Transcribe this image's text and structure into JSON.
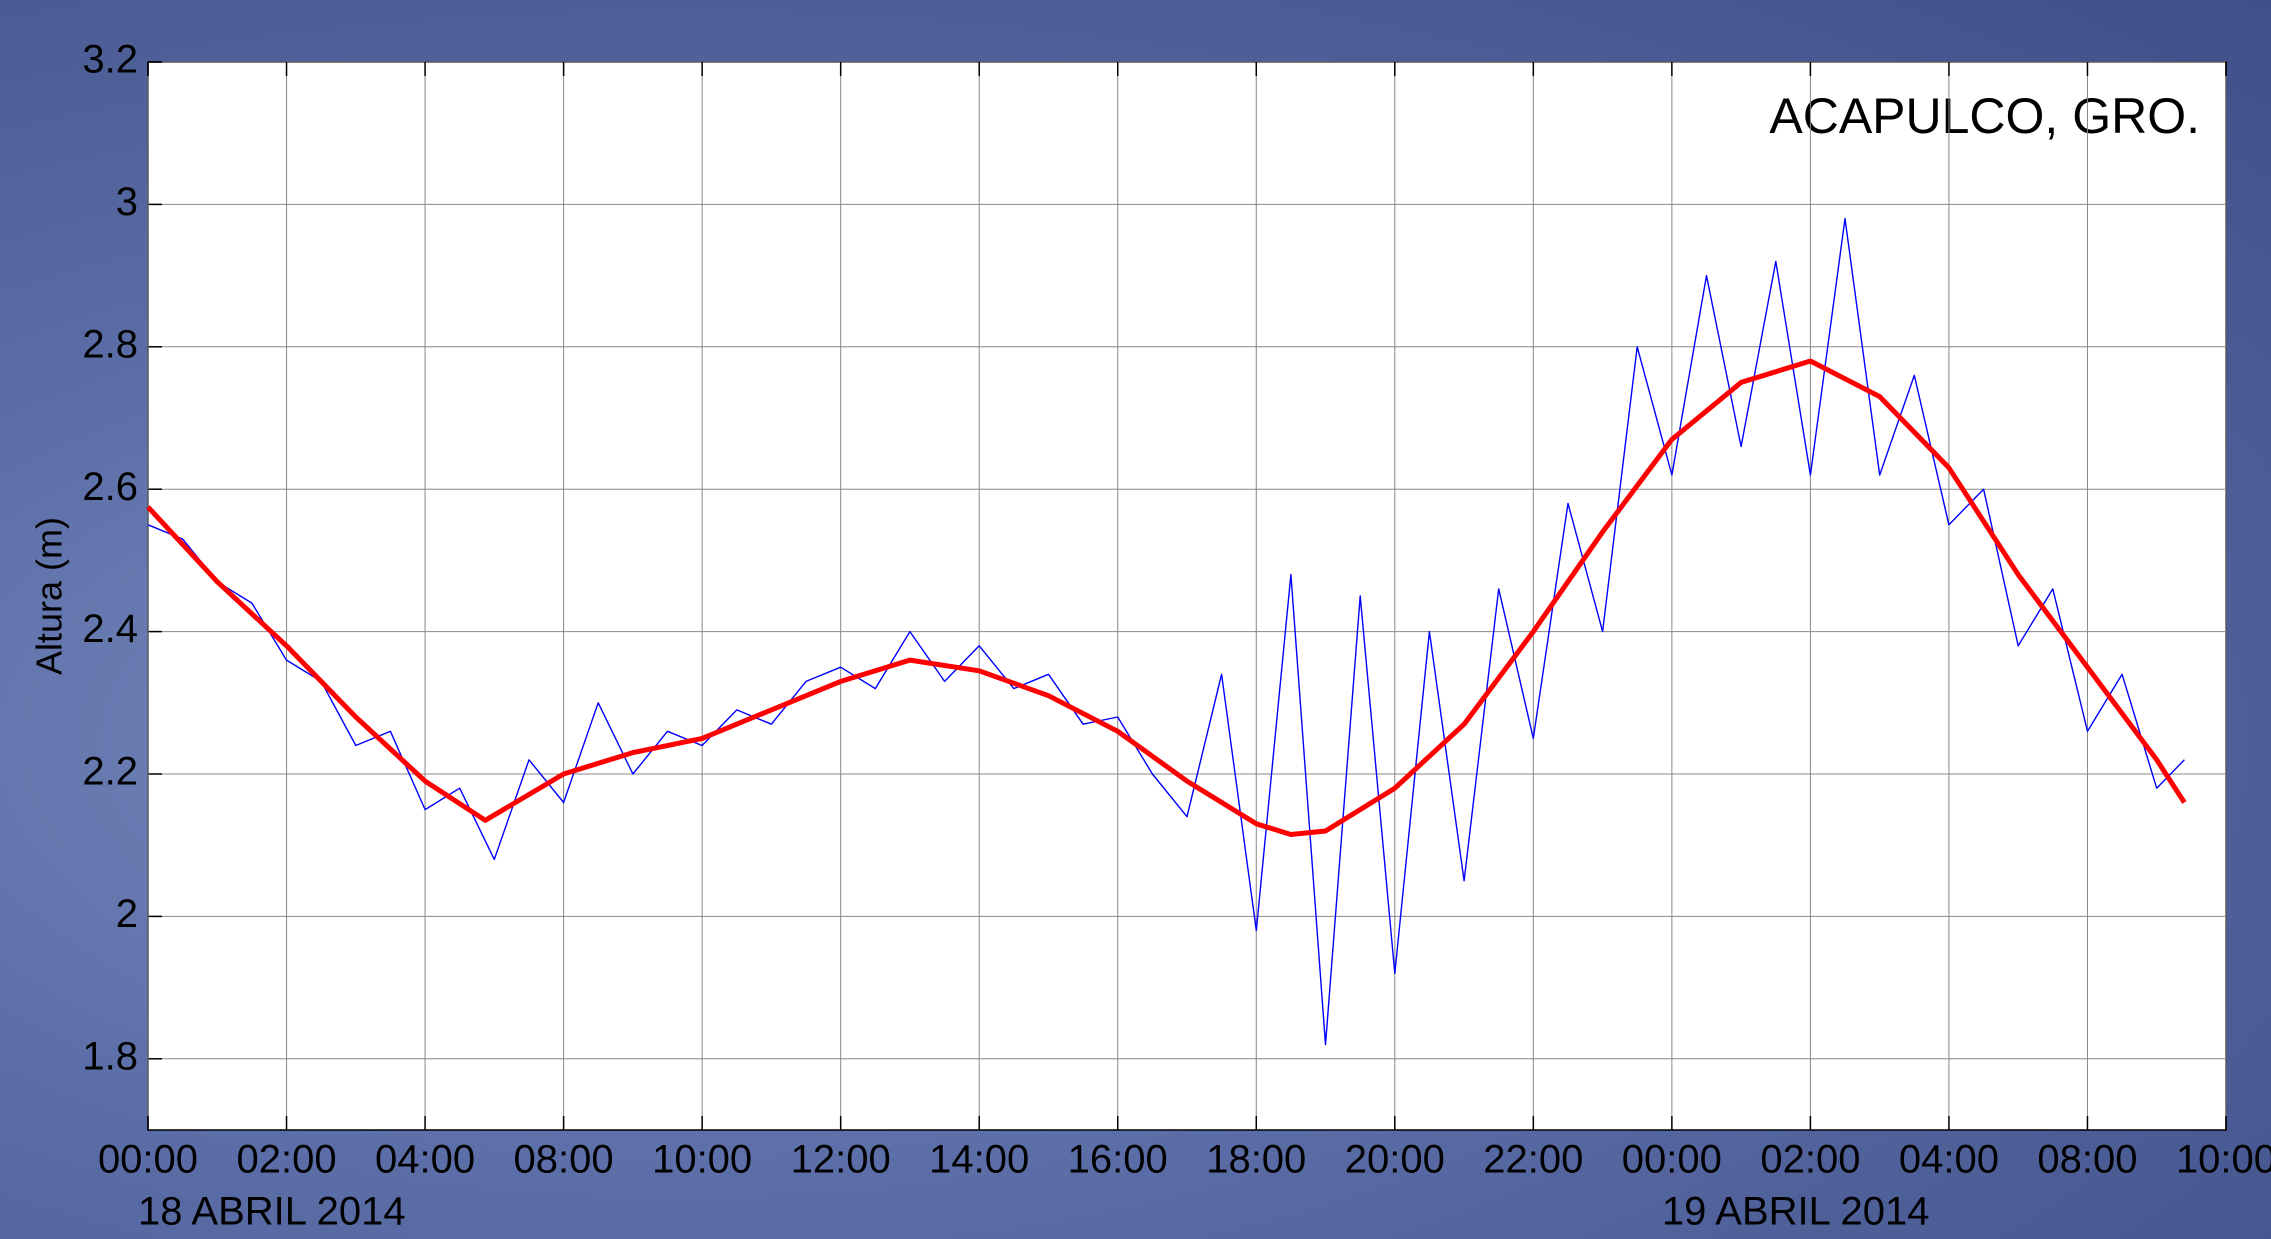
{
  "chart_data": {
    "type": "line",
    "annotation": "ACAPULCO, GRO.",
    "y_label": "Altura (m)",
    "date_labels": [
      "18 ABRIL 2014",
      "19 ABRIL 2014"
    ],
    "xlim": [
      0,
      30
    ],
    "xticks": [
      {
        "value": 0,
        "label": "00:00"
      },
      {
        "value": 2,
        "label": "02:00"
      },
      {
        "value": 4,
        "label": "04:00"
      },
      {
        "value": 6,
        "label": "08:00"
      },
      {
        "value": 8,
        "label": "10:00"
      },
      {
        "value": 10,
        "label": "12:00"
      },
      {
        "value": 12,
        "label": "14:00"
      },
      {
        "value": 14,
        "label": "16:00"
      },
      {
        "value": 16,
        "label": "18:00"
      },
      {
        "value": 18,
        "label": "20:00"
      },
      {
        "value": 20,
        "label": "22:00"
      },
      {
        "value": 22,
        "label": "00:00"
      },
      {
        "value": 24,
        "label": "02:00"
      },
      {
        "value": 26,
        "label": "04:00"
      },
      {
        "value": 28,
        "label": "08:00"
      },
      {
        "value": 30,
        "label": "10:00"
      }
    ],
    "ylim": [
      1.7,
      3.2
    ],
    "yticks": [
      1.8,
      2,
      2.2,
      2.4,
      2.6,
      2.8,
      3,
      3.2
    ],
    "grid": true,
    "series": [
      {
        "color": "#0000ff",
        "width": 1.4,
        "x": [
          0,
          0.5,
          1,
          1.5,
          2,
          2.5,
          3,
          3.5,
          4,
          4.5,
          5,
          5.5,
          6,
          6.5,
          7,
          7.5,
          8,
          8.5,
          9,
          9.5,
          10,
          10.5,
          11,
          11.5,
          12,
          12.5,
          13,
          13.5,
          14,
          14.5,
          15,
          15.5,
          16,
          16.5,
          17,
          17.5,
          18,
          18.5,
          19,
          19.5,
          20,
          20.5,
          21,
          21.5,
          22,
          22.5,
          23,
          23.5,
          24,
          24.5,
          25,
          25.5,
          26,
          26.5,
          27,
          27.5,
          28,
          28.5,
          29,
          29.4
        ],
        "values": [
          2.55,
          2.53,
          2.47,
          2.44,
          2.36,
          2.33,
          2.24,
          2.26,
          2.15,
          2.18,
          2.08,
          2.22,
          2.16,
          2.3,
          2.2,
          2.26,
          2.24,
          2.29,
          2.27,
          2.33,
          2.35,
          2.32,
          2.4,
          2.33,
          2.38,
          2.32,
          2.34,
          2.27,
          2.28,
          2.2,
          2.14,
          2.34,
          1.98,
          2.48,
          1.82,
          2.45,
          1.92,
          2.4,
          2.05,
          2.46,
          2.25,
          2.58,
          2.4,
          2.8,
          2.62,
          2.9,
          2.66,
          2.92,
          2.62,
          2.98,
          2.62,
          2.76,
          2.55,
          2.6,
          2.38,
          2.46,
          2.26,
          2.34,
          2.18,
          2.22
        ]
      },
      {
        "color": "#ff0000",
        "width": 5,
        "x": [
          0,
          1,
          2,
          3,
          4,
          4.87,
          6,
          7,
          8,
          9,
          10,
          11,
          12,
          13,
          14,
          15,
          16,
          16.5,
          17,
          18,
          19,
          20,
          21,
          22,
          23,
          24,
          25,
          26,
          27,
          28,
          29,
          29.4
        ],
        "values": [
          2.575,
          2.47,
          2.38,
          2.28,
          2.19,
          2.135,
          2.2,
          2.23,
          2.25,
          2.29,
          2.33,
          2.36,
          2.345,
          2.31,
          2.26,
          2.19,
          2.13,
          2.115,
          2.12,
          2.18,
          2.27,
          2.4,
          2.54,
          2.67,
          2.75,
          2.78,
          2.73,
          2.63,
          2.48,
          2.35,
          2.22,
          2.16
        ]
      }
    ]
  }
}
